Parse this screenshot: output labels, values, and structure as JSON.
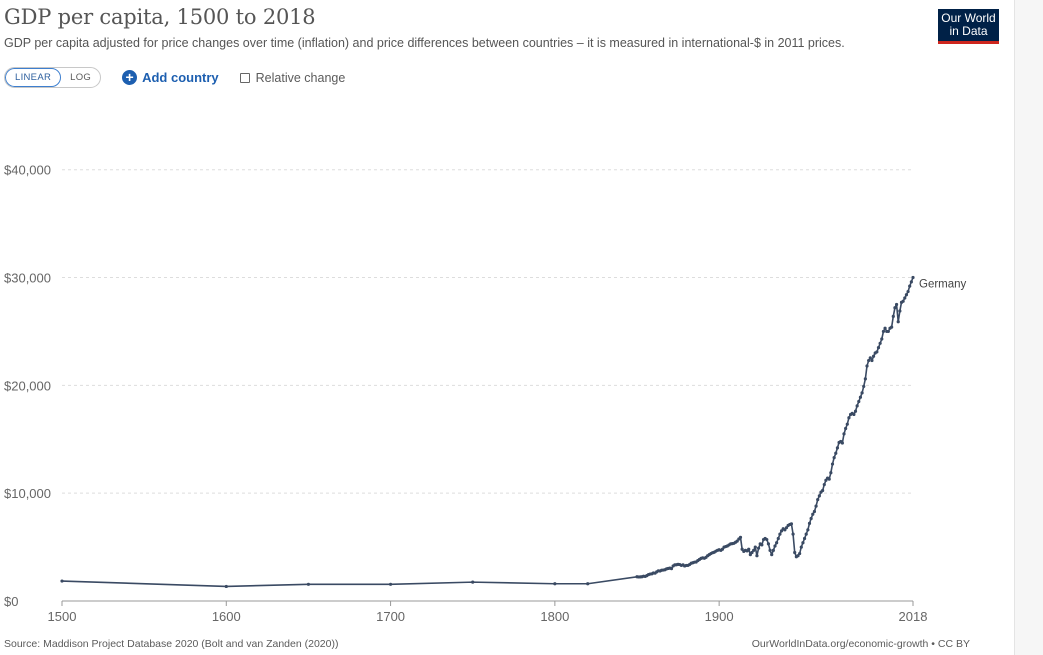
{
  "header": {
    "title": "GDP per capita, 1500 to 2018",
    "subtitle": "GDP per capita adjusted for price changes over time (inflation) and price differences between countries – it is measured in international-$ in 2011 prices."
  },
  "logo": {
    "line1": "Our World",
    "line2": "in Data"
  },
  "controls": {
    "linear_label": "LINEAR",
    "log_label": "LOG",
    "add_country_label": "Add country",
    "relative_change_label": "Relative change"
  },
  "footer": {
    "source": "Source: Maddison Project Database 2020 (Bolt and van Zanden (2020))",
    "link": "OurWorldInData.org/economic-growth • CC BY"
  },
  "colors": {
    "series": "#3a4a63",
    "brand": "#002147",
    "brand_accent": "#ce261e",
    "link": "#1d5fb0"
  },
  "chart_data": {
    "type": "line",
    "title": "GDP per capita, 1500 to 2018",
    "xlabel": "",
    "ylabel": "",
    "xlim": [
      1500,
      2018
    ],
    "ylim": [
      0,
      46000
    ],
    "x_ticks": [
      1500,
      1600,
      1700,
      1800,
      1900,
      2018
    ],
    "x_tick_labels": [
      "1500",
      "1600",
      "1700",
      "1800",
      "1900",
      "2018"
    ],
    "y_ticks": [
      0,
      10000,
      20000,
      30000,
      40000
    ],
    "y_tick_labels": [
      "$0",
      "$10,000",
      "$20,000",
      "$30,000",
      "$40,000"
    ],
    "grid": "horizontal dashed",
    "series": [
      {
        "name": "Germany",
        "x": [
          1500,
          1600,
          1650,
          1700,
          1750,
          1800,
          1820,
          1850,
          1851,
          1852,
          1853,
          1854,
          1855,
          1856,
          1857,
          1858,
          1859,
          1860,
          1861,
          1862,
          1863,
          1864,
          1865,
          1866,
          1867,
          1868,
          1869,
          1870,
          1871,
          1872,
          1873,
          1874,
          1875,
          1876,
          1877,
          1878,
          1879,
          1880,
          1881,
          1882,
          1883,
          1884,
          1885,
          1886,
          1887,
          1888,
          1889,
          1890,
          1891,
          1892,
          1893,
          1894,
          1895,
          1896,
          1897,
          1898,
          1899,
          1900,
          1901,
          1902,
          1903,
          1904,
          1905,
          1906,
          1907,
          1908,
          1909,
          1910,
          1911,
          1912,
          1913,
          1914,
          1915,
          1916,
          1917,
          1918,
          1919,
          1920,
          1921,
          1922,
          1923,
          1924,
          1925,
          1926,
          1927,
          1928,
          1929,
          1930,
          1931,
          1932,
          1933,
          1934,
          1935,
          1936,
          1937,
          1938,
          1939,
          1940,
          1941,
          1942,
          1943,
          1944,
          1945,
          1946,
          1947,
          1948,
          1949,
          1950,
          1951,
          1952,
          1953,
          1954,
          1955,
          1956,
          1957,
          1958,
          1959,
          1960,
          1961,
          1962,
          1963,
          1964,
          1965,
          1966,
          1967,
          1968,
          1969,
          1970,
          1971,
          1972,
          1973,
          1974,
          1975,
          1976,
          1977,
          1978,
          1979,
          1980,
          1981,
          1982,
          1983,
          1984,
          1985,
          1986,
          1987,
          1988,
          1989,
          1990,
          1991,
          1992,
          1993,
          1994,
          1995,
          1996,
          1997,
          1998,
          1999,
          2000,
          2001,
          2002,
          2003,
          2004,
          2005,
          2006,
          2007,
          2008,
          2009,
          2010,
          2011,
          2012,
          2013,
          2014,
          2015,
          2016,
          2017,
          2018
        ],
        "y": [
          1850,
          1350,
          1550,
          1550,
          1750,
          1600,
          1600,
          2250,
          2230,
          2240,
          2250,
          2300,
          2280,
          2350,
          2450,
          2500,
          2520,
          2600,
          2580,
          2700,
          2800,
          2780,
          2850,
          2870,
          2900,
          2980,
          3020,
          3050,
          3000,
          3250,
          3350,
          3360,
          3400,
          3380,
          3300,
          3350,
          3250,
          3300,
          3300,
          3380,
          3500,
          3550,
          3600,
          3620,
          3750,
          3850,
          3950,
          4000,
          3960,
          4050,
          4200,
          4300,
          4400,
          4480,
          4520,
          4620,
          4700,
          4750,
          4700,
          4800,
          5000,
          5050,
          5100,
          5200,
          5300,
          5320,
          5350,
          5450,
          5550,
          5750,
          5900,
          4800,
          4600,
          4700,
          4650,
          4800,
          4300,
          4500,
          4700,
          5000,
          4200,
          4900,
          5300,
          5200,
          5700,
          5800,
          5700,
          5300,
          4700,
          4300,
          4700,
          5100,
          5400,
          5800,
          6200,
          6500,
          6700,
          6600,
          6800,
          7000,
          7100,
          7150,
          6200,
          4500,
          4100,
          4200,
          4400,
          5000,
          5400,
          5800,
          6200,
          6600,
          7200,
          7650,
          8050,
          8300,
          8800,
          9400,
          9750,
          10100,
          10250,
          10800,
          11200,
          11400,
          11300,
          11900,
          12700,
          13300,
          13700,
          14200,
          14700,
          14800,
          14650,
          15500,
          16000,
          16400,
          17000,
          17300,
          17400,
          17300,
          17600,
          18100,
          18500,
          18900,
          19300,
          19900,
          20600,
          21800,
          22300,
          22550,
          22300,
          22700,
          23000,
          23100,
          23500,
          23900,
          24300,
          25000,
          25300,
          25000,
          25000,
          25300,
          25400,
          26400,
          27200,
          27500,
          25900,
          26900,
          27700,
          27800,
          28100,
          28400,
          28700,
          29200,
          29600,
          30000
        ]
      }
    ],
    "annotations": [
      "Germany"
    ]
  }
}
